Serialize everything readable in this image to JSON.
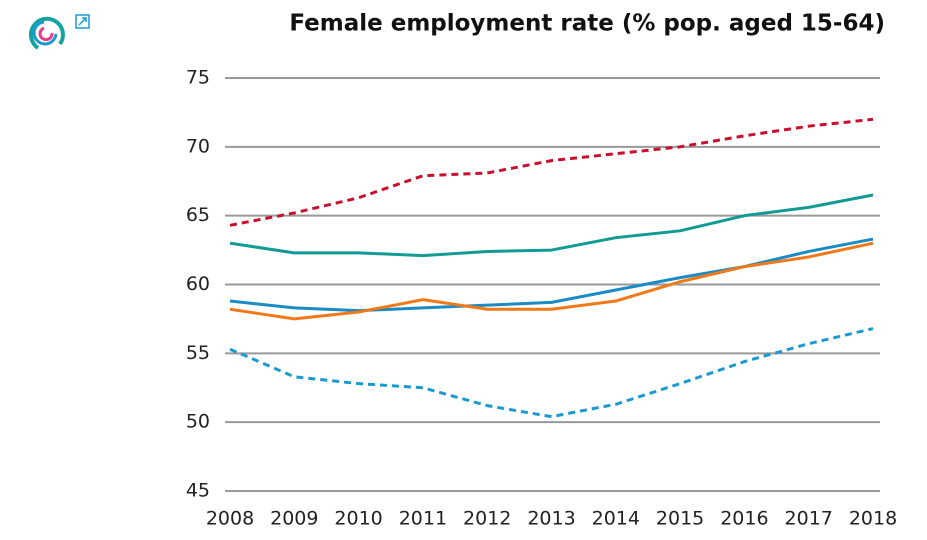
{
  "chart_data": {
    "type": "line",
    "title": "Female employment rate (% pop. aged 15-64)",
    "categories": [
      "2008",
      "2009",
      "2010",
      "2011",
      "2012",
      "2013",
      "2014",
      "2015",
      "2016",
      "2017",
      "2018"
    ],
    "series": [
      {
        "color": "#c8102e",
        "dashed": true,
        "values": [
          64.3,
          65.2,
          66.3,
          67.9,
          68.1,
          69.0,
          69.5,
          70.0,
          70.8,
          71.5,
          72.0
        ]
      },
      {
        "color": "#139a94",
        "dashed": false,
        "values": [
          63.0,
          62.3,
          62.3,
          62.1,
          62.4,
          62.5,
          63.4,
          63.9,
          65.0,
          65.6,
          66.5
        ]
      },
      {
        "color": "#1a8bc4",
        "dashed": false,
        "values": [
          58.8,
          58.3,
          58.1,
          58.3,
          58.5,
          58.7,
          59.6,
          60.5,
          61.3,
          62.4,
          63.3
        ]
      },
      {
        "color": "#f07a1a",
        "dashed": false,
        "values": [
          58.2,
          57.5,
          58.0,
          58.9,
          58.2,
          58.2,
          58.8,
          60.2,
          61.3,
          62.0,
          63.0
        ]
      },
      {
        "color": "#1a9ad0",
        "dashed": true,
        "values": [
          55.3,
          53.3,
          52.8,
          52.5,
          51.2,
          50.4,
          51.3,
          52.8,
          54.4,
          55.7,
          56.8
        ]
      }
    ],
    "ylim": [
      45,
      75
    ],
    "yticks": [
      45,
      50,
      55,
      60,
      65,
      70,
      75
    ],
    "grid": true
  }
}
